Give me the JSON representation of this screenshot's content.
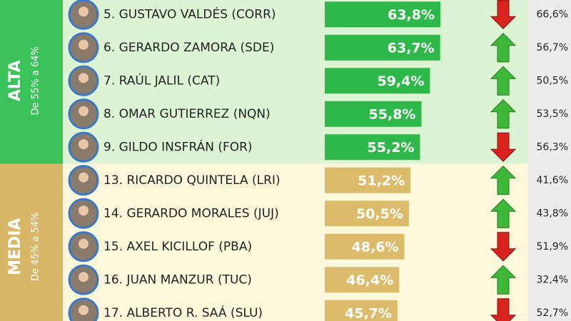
{
  "chart_data": {
    "type": "bar",
    "orientation": "horizontal",
    "xlim": [
      15,
      65
    ],
    "groups": [
      {
        "name": "ALTA",
        "subtitle": "De 55% a 64%",
        "color": "#2eb84a",
        "band_color": "#3cc25a",
        "row_color": "#dcf4d4",
        "rows": [
          {
            "name": "5. GUSTAVO VALDÉS  (CORR)",
            "value": 63.8,
            "value_label": "63,8%",
            "previous": 66.6,
            "previous_label": "66,6%",
            "trend": "down"
          },
          {
            "name": "6. GERARDO ZAMORA (SDE)",
            "value": 63.7,
            "value_label": "63,7%",
            "previous": 56.7,
            "previous_label": "56,7%",
            "trend": "up"
          },
          {
            "name": "7. RAÚL JALIL (CAT)",
            "value": 59.4,
            "value_label": "59,4%",
            "previous": 50.5,
            "previous_label": "50,5%",
            "trend": "up"
          },
          {
            "name": "8. OMAR GUTIERREZ (NQN)",
            "value": 55.8,
            "value_label": "55,8%",
            "previous": 53.5,
            "previous_label": "53,5%",
            "trend": "up"
          },
          {
            "name": "9. GILDO INSFRÁN (FOR)",
            "value": 55.2,
            "value_label": "55,2%",
            "previous": 56.3,
            "previous_label": "56,3%",
            "trend": "down"
          }
        ]
      },
      {
        "name": "MEDIA",
        "subtitle": "De 45% a 54%",
        "color": "#dcbc6a",
        "band_color": "#d8b868",
        "row_color": "#fdf8dc",
        "rows": [
          {
            "name": "13. RICARDO QUINTELA (LRI)",
            "value": 51.2,
            "value_label": "51,2%",
            "previous": 41.6,
            "previous_label": "41,6%",
            "trend": "up"
          },
          {
            "name": "14. GERARDO MORALES (JUJ)",
            "value": 50.5,
            "value_label": "50,5%",
            "previous": 43.8,
            "previous_label": "43,8%",
            "trend": "up"
          },
          {
            "name": "15. AXEL KICILLOF (PBA)",
            "value": 48.6,
            "value_label": "48,6%",
            "previous": 51.9,
            "previous_label": "51,9%",
            "trend": "down"
          },
          {
            "name": "16. JUAN MANZUR (TUC)",
            "value": 46.4,
            "value_label": "46,4%",
            "previous": 32.4,
            "previous_label": "32,4%",
            "trend": "up"
          },
          {
            "name": "17.  ALBERTO R. SAÁ (SLU)",
            "value": 45.7,
            "value_label": "45,7%",
            "previous": 52.7,
            "previous_label": "52,7%",
            "trend": "down"
          }
        ]
      }
    ]
  }
}
